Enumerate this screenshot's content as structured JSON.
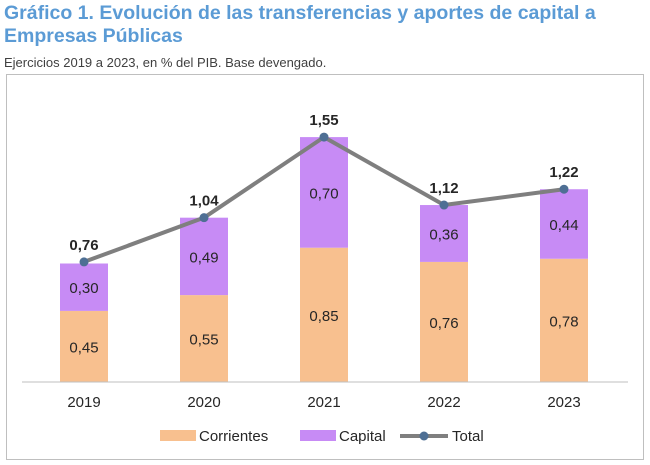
{
  "header": {
    "title": "Gráfico 1. Evolución de las transferencias y aportes de capital a Empresas Públicas",
    "subtitle": "Ejercicios 2019 a 2023, en % del PIB. Base devengado."
  },
  "chart_data": {
    "type": "bar",
    "stacked": true,
    "title": "Gráfico 1. Evolución de las transferencias y aportes de capital a Empresas Públicas",
    "subtitle": "Ejercicios 2019 a 2023, en % del PIB. Base devengado.",
    "categories": [
      "2019",
      "2020",
      "2021",
      "2022",
      "2023"
    ],
    "series": [
      {
        "name": "Corrientes",
        "kind": "bar",
        "color": "#f8c08f",
        "values": [
          0.45,
          0.55,
          0.85,
          0.76,
          0.78
        ],
        "labels": [
          "0,45",
          "0,55",
          "0,85",
          "0,76",
          "0,78"
        ]
      },
      {
        "name": "Capital",
        "kind": "bar",
        "color": "#c78bf5",
        "values": [
          0.3,
          0.49,
          0.7,
          0.36,
          0.44
        ],
        "labels": [
          "0,30",
          "0,49",
          "0,70",
          "0,36",
          "0,44"
        ]
      },
      {
        "name": "Total",
        "kind": "line",
        "color": "#7f7f7f",
        "marker_color": "#4e6f94",
        "values": [
          0.76,
          1.04,
          1.55,
          1.12,
          1.22
        ],
        "labels": [
          "0,76",
          "1,04",
          "1,55",
          "1,12",
          "1,22"
        ]
      }
    ],
    "ylim": [
      0,
      1.6
    ],
    "xlabel": "",
    "ylabel": "",
    "legend": {
      "position": "bottom",
      "entries": [
        "Corrientes",
        "Capital",
        "Total"
      ]
    }
  }
}
